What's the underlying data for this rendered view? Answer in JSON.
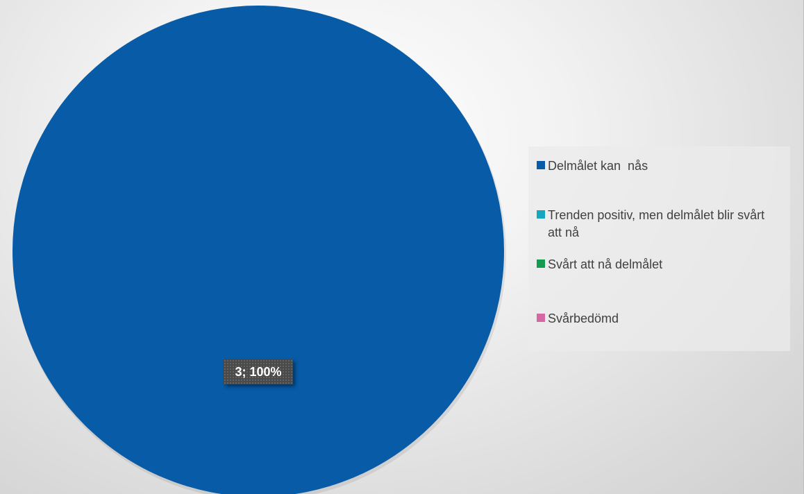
{
  "chart_data": {
    "type": "pie",
    "categories": [
      "Delmålet kan  nås",
      "Trenden positiv, men delmålet blir svårt att nå",
      "Svårt att nå delmålet",
      "Svårbedömd"
    ],
    "values": [
      3,
      0,
      0,
      0
    ],
    "colors": [
      "#075BA7",
      "#17A6BF",
      "#149C4E",
      "#D567A4"
    ],
    "data_labels": [
      "3; 100%"
    ],
    "legend_position": "right",
    "title": ""
  },
  "legend": {
    "items": [
      {
        "label": "Delmålet kan  nås",
        "color": "#075BA7"
      },
      {
        "label": "Trenden positiv, men delmålet blir svårt att nå",
        "color": "#17A6BF"
      },
      {
        "label": "Svårt att nå delmålet",
        "color": "#149C4E"
      },
      {
        "label": "Svårbedömd",
        "color": "#D567A4"
      }
    ]
  }
}
